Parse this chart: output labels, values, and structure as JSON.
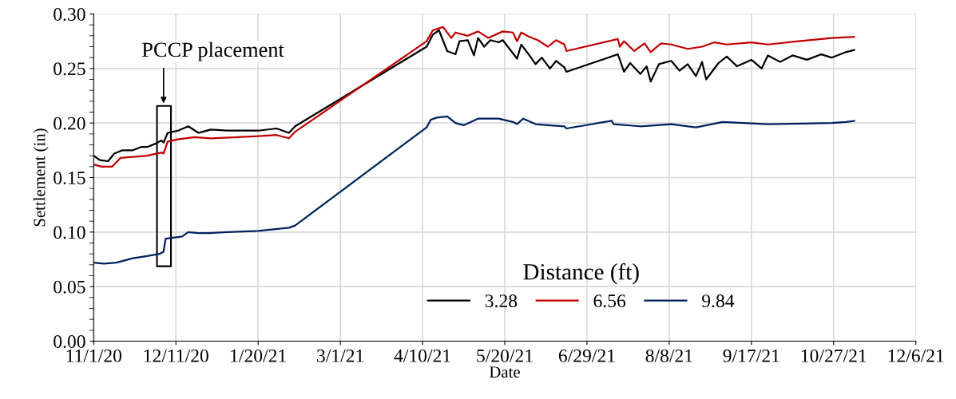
{
  "chart_data": {
    "type": "line",
    "xlabel": "Date",
    "ylabel": "Settlement (in)",
    "legend_title": "Distance (ft)",
    "legend": "bottom right",
    "grid": true,
    "marker": "none",
    "line_style": "solid",
    "annotations": [
      "PCCP placement"
    ],
    "xlim": [
      "2020-11-01",
      "2021-12-06"
    ],
    "xticks": [
      {
        "value": "2020-11-01",
        "label": "11/1/20"
      },
      {
        "value": "2020-12-11",
        "label": "12/11/20"
      },
      {
        "value": "2021-01-20",
        "label": "1/20/21"
      },
      {
        "value": "2021-03-01",
        "label": "3/1/21"
      },
      {
        "value": "2021-04-10",
        "label": "4/10/21"
      },
      {
        "value": "2021-05-20",
        "label": "5/20/21"
      },
      {
        "value": "2021-06-29",
        "label": "6/29/21"
      },
      {
        "value": "2021-08-08",
        "label": "8/8/21"
      },
      {
        "value": "2021-09-17",
        "label": "9/17/21"
      },
      {
        "value": "2021-10-27",
        "label": "10/27/21"
      },
      {
        "value": "2021-12-06",
        "label": "12/6/21"
      }
    ],
    "ylim": [
      0,
      0.3
    ],
    "yticks": [
      {
        "value": 0,
        "label": "0.00"
      },
      {
        "value": 0.05,
        "label": "0.05"
      },
      {
        "value": 0.1,
        "label": "0.10"
      },
      {
        "value": 0.15,
        "label": "0.15"
      },
      {
        "value": 0.2,
        "label": "0.20"
      },
      {
        "value": 0.25,
        "label": "0.25"
      },
      {
        "value": 0.3,
        "label": "0.30"
      }
    ],
    "series": [
      {
        "name": "3.28",
        "color": "#000000",
        "x": [
          "2020-11-01",
          "2020-11-04",
          "2020-11-08",
          "2020-11-11",
          "2020-11-15",
          "2020-11-20",
          "2020-11-24",
          "2020-11-27",
          "2020-12-01",
          "2020-12-04",
          "2020-12-05",
          "2020-12-07",
          "2020-12-12",
          "2020-12-17",
          "2020-12-22",
          "2020-12-28",
          "2021-01-05",
          "2021-01-12",
          "2021-01-20",
          "2021-01-29",
          "2021-02-04",
          "2021-02-07",
          "2021-04-12",
          "2021-04-15",
          "2021-04-18",
          "2021-04-22",
          "2021-04-26",
          "2021-04-28",
          "2021-05-02",
          "2021-05-05",
          "2021-05-07",
          "2021-05-10",
          "2021-05-13",
          "2021-05-17",
          "2021-05-19",
          "2021-05-26",
          "2021-05-28",
          "2021-06-01",
          "2021-06-04",
          "2021-06-07",
          "2021-06-11",
          "2021-06-14",
          "2021-06-18",
          "2021-06-19",
          "2021-07-14",
          "2021-07-15",
          "2021-07-17",
          "2021-07-20",
          "2021-07-25",
          "2021-07-28",
          "2021-07-30",
          "2021-08-03",
          "2021-08-09",
          "2021-08-13",
          "2021-08-17",
          "2021-08-21",
          "2021-08-24",
          "2021-08-26",
          "2021-09-01",
          "2021-09-05",
          "2021-09-10",
          "2021-09-17",
          "2021-09-22",
          "2021-09-25",
          "2021-10-01",
          "2021-10-07",
          "2021-10-14",
          "2021-10-21",
          "2021-10-26",
          "2021-11-02",
          "2021-11-06"
        ],
        "values": [
          0.17,
          0.166,
          0.165,
          0.172,
          0.175,
          0.175,
          0.178,
          0.178,
          0.181,
          0.184,
          0.182,
          0.191,
          0.193,
          0.197,
          0.191,
          0.194,
          0.193,
          0.193,
          0.193,
          0.195,
          0.191,
          0.197,
          0.27,
          0.281,
          0.285,
          0.266,
          0.263,
          0.275,
          0.276,
          0.262,
          0.278,
          0.27,
          0.276,
          0.274,
          0.276,
          0.259,
          0.272,
          0.262,
          0.254,
          0.26,
          0.25,
          0.257,
          0.251,
          0.247,
          0.263,
          0.258,
          0.247,
          0.255,
          0.245,
          0.252,
          0.238,
          0.254,
          0.257,
          0.248,
          0.254,
          0.243,
          0.256,
          0.24,
          0.255,
          0.261,
          0.252,
          0.258,
          0.25,
          0.262,
          0.256,
          0.262,
          0.258,
          0.263,
          0.26,
          0.265,
          0.267
        ]
      },
      {
        "name": "6.56",
        "color": "#c00000",
        "x": [
          "2020-11-01",
          "2020-11-05",
          "2020-11-10",
          "2020-11-14",
          "2020-11-20",
          "2020-11-27",
          "2020-12-04",
          "2020-12-05",
          "2020-12-07",
          "2020-12-12",
          "2020-12-20",
          "2020-12-28",
          "2021-01-10",
          "2021-01-20",
          "2021-01-29",
          "2021-02-04",
          "2021-02-07",
          "2021-04-12",
          "2021-04-15",
          "2021-04-20",
          "2021-04-24",
          "2021-04-26",
          "2021-05-02",
          "2021-05-07",
          "2021-05-12",
          "2021-05-19",
          "2021-05-24",
          "2021-05-26",
          "2021-05-28",
          "2021-06-01",
          "2021-06-05",
          "2021-06-10",
          "2021-06-14",
          "2021-06-18",
          "2021-06-19",
          "2021-07-14",
          "2021-07-15",
          "2021-07-17",
          "2021-07-22",
          "2021-07-27",
          "2021-07-30",
          "2021-08-04",
          "2021-08-09",
          "2021-08-17",
          "2021-08-24",
          "2021-08-30",
          "2021-09-05",
          "2021-09-17",
          "2021-09-25",
          "2021-10-10",
          "2021-10-26",
          "2021-11-06"
        ],
        "values": [
          0.162,
          0.16,
          0.16,
          0.168,
          0.169,
          0.17,
          0.173,
          0.172,
          0.183,
          0.185,
          0.187,
          0.186,
          0.187,
          0.188,
          0.189,
          0.186,
          0.192,
          0.275,
          0.285,
          0.288,
          0.278,
          0.283,
          0.28,
          0.284,
          0.278,
          0.284,
          0.283,
          0.275,
          0.283,
          0.279,
          0.276,
          0.27,
          0.276,
          0.272,
          0.266,
          0.277,
          0.27,
          0.275,
          0.266,
          0.273,
          0.265,
          0.273,
          0.272,
          0.268,
          0.27,
          0.274,
          0.272,
          0.274,
          0.272,
          0.275,
          0.278,
          0.279
        ]
      },
      {
        "name": "9.84",
        "color": "#002060",
        "x": [
          "2020-11-01",
          "2020-11-06",
          "2020-11-12",
          "2020-11-20",
          "2020-11-27",
          "2020-12-03",
          "2020-12-05",
          "2020-12-06",
          "2020-12-14",
          "2020-12-17",
          "2020-12-22",
          "2020-12-27",
          "2021-01-05",
          "2021-01-20",
          "2021-02-04",
          "2021-02-07",
          "2021-04-12",
          "2021-04-14",
          "2021-04-17",
          "2021-04-22",
          "2021-04-26",
          "2021-04-30",
          "2021-05-07",
          "2021-05-17",
          "2021-05-24",
          "2021-05-26",
          "2021-05-29",
          "2021-06-04",
          "2021-06-10",
          "2021-06-18",
          "2021-06-19",
          "2021-07-11",
          "2021-07-12",
          "2021-07-25",
          "2021-08-09",
          "2021-08-21",
          "2021-09-03",
          "2021-09-25",
          "2021-10-26",
          "2021-11-02",
          "2021-11-06"
        ],
        "values": [
          0.072,
          0.071,
          0.072,
          0.076,
          0.078,
          0.08,
          0.082,
          0.094,
          0.096,
          0.1,
          0.099,
          0.099,
          0.1,
          0.101,
          0.104,
          0.106,
          0.196,
          0.203,
          0.205,
          0.206,
          0.2,
          0.198,
          0.204,
          0.204,
          0.201,
          0.199,
          0.204,
          0.199,
          0.198,
          0.197,
          0.195,
          0.202,
          0.199,
          0.197,
          0.199,
          0.196,
          0.201,
          0.199,
          0.2,
          0.201,
          0.202
        ]
      }
    ]
  }
}
